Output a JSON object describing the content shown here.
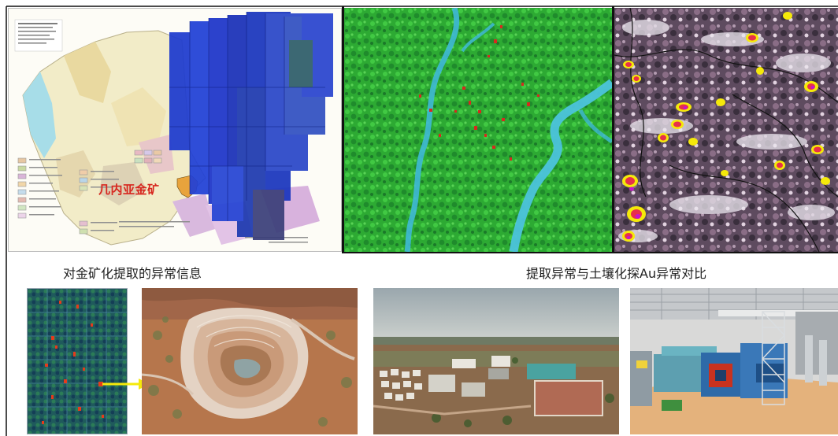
{
  "map_title": "几内亚金矿",
  "caption_left": "对金矿化提取的异常信息",
  "caption_right": "提取异常与土壤化探Au异常对比",
  "colors": {
    "title_red": "#d7261e",
    "scene_blue": "#1d35c9",
    "vegetation_green": "#37c43a",
    "river_cyan": "#3fb8d6",
    "anomaly_red": "#d62a1e",
    "arrow_yellow": "#f5e90a"
  }
}
